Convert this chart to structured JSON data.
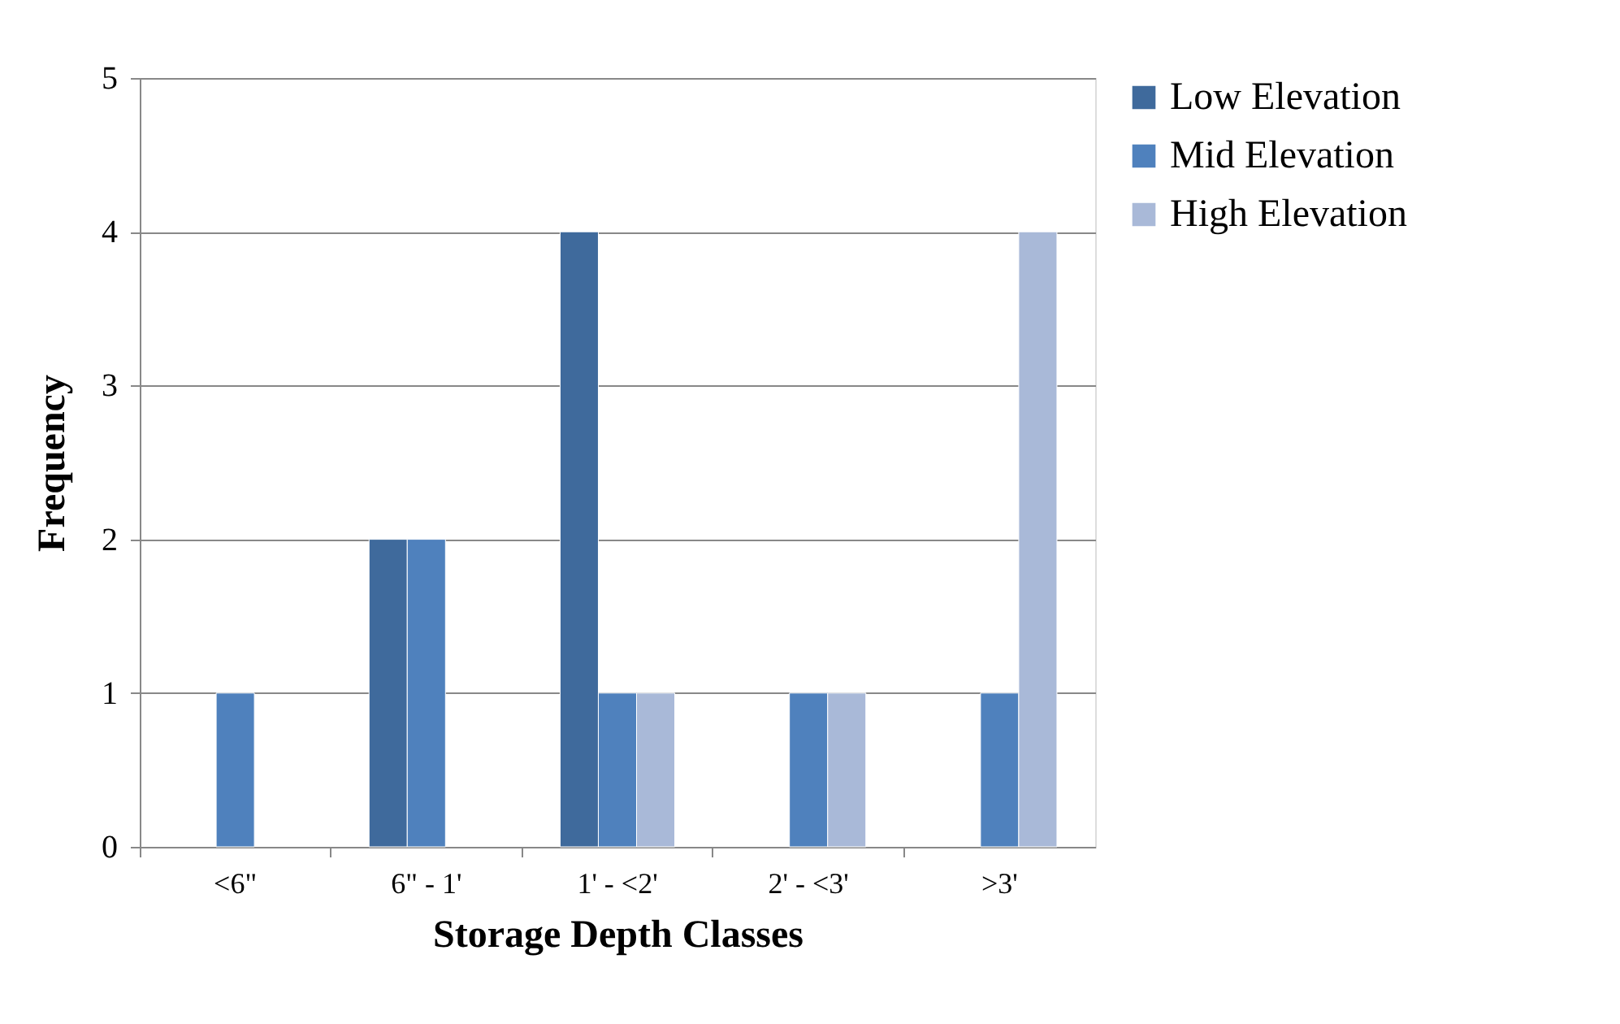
{
  "chart_data": {
    "type": "bar",
    "xlabel": "Storage Depth Classes",
    "ylabel": "Frequency",
    "categories": [
      "<6\"",
      "6\" - 1'",
      "1' - <2'",
      "2' - <3'",
      ">3'"
    ],
    "series": [
      {
        "name": "Low Elevation",
        "color": "#3f6a9c",
        "values": [
          null,
          2,
          4,
          null,
          null
        ]
      },
      {
        "name": "Mid Elevation",
        "color": "#4f81bd",
        "values": [
          1,
          2,
          1,
          1,
          1
        ]
      },
      {
        "name": "High Elevation",
        "color": "#a9b9d8",
        "values": [
          null,
          null,
          1,
          1,
          4
        ]
      }
    ],
    "ylim": [
      0,
      5
    ],
    "yticks": [
      0,
      1,
      2,
      3,
      4,
      5
    ],
    "grid": "y",
    "legend": "right"
  }
}
